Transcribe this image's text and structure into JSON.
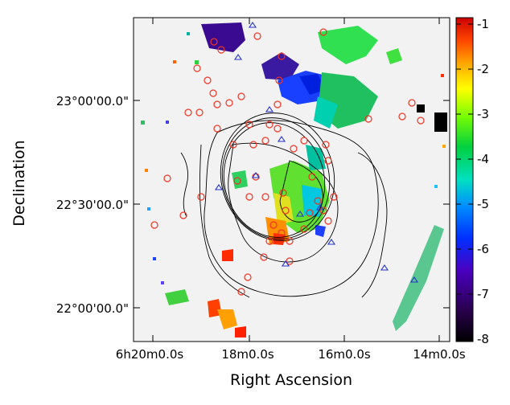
{
  "chart_data": {
    "type": "heatmap",
    "xlabel": "Right Ascension",
    "ylabel": "Declination",
    "x_ticks": [
      "6h20m0.0s",
      "18m0.0s",
      "16m0.0s",
      "14m0.0s"
    ],
    "y_ticks": [
      "22°00'00.0\"",
      "22°30'00.0\"",
      "23°00'00.0\""
    ],
    "colorbar": {
      "min": -8,
      "max": -1,
      "ticks": [
        "-1",
        "-2",
        "-3",
        "-4",
        "-5",
        "-6",
        "-7",
        "-8"
      ],
      "colormap": [
        "#cc0000",
        "#ff4500",
        "#ffa500",
        "#ffff00",
        "#7fff00",
        "#00d040",
        "#00e0c0",
        "#0090ff",
        "#0020ff",
        "#5000b0",
        "#200040",
        "#000000"
      ]
    },
    "markers": {
      "circle_color": "#ee3322",
      "triangle_color": "#2233cc",
      "contour_color": "#000000",
      "background_color": "#f2f2f2"
    }
  }
}
